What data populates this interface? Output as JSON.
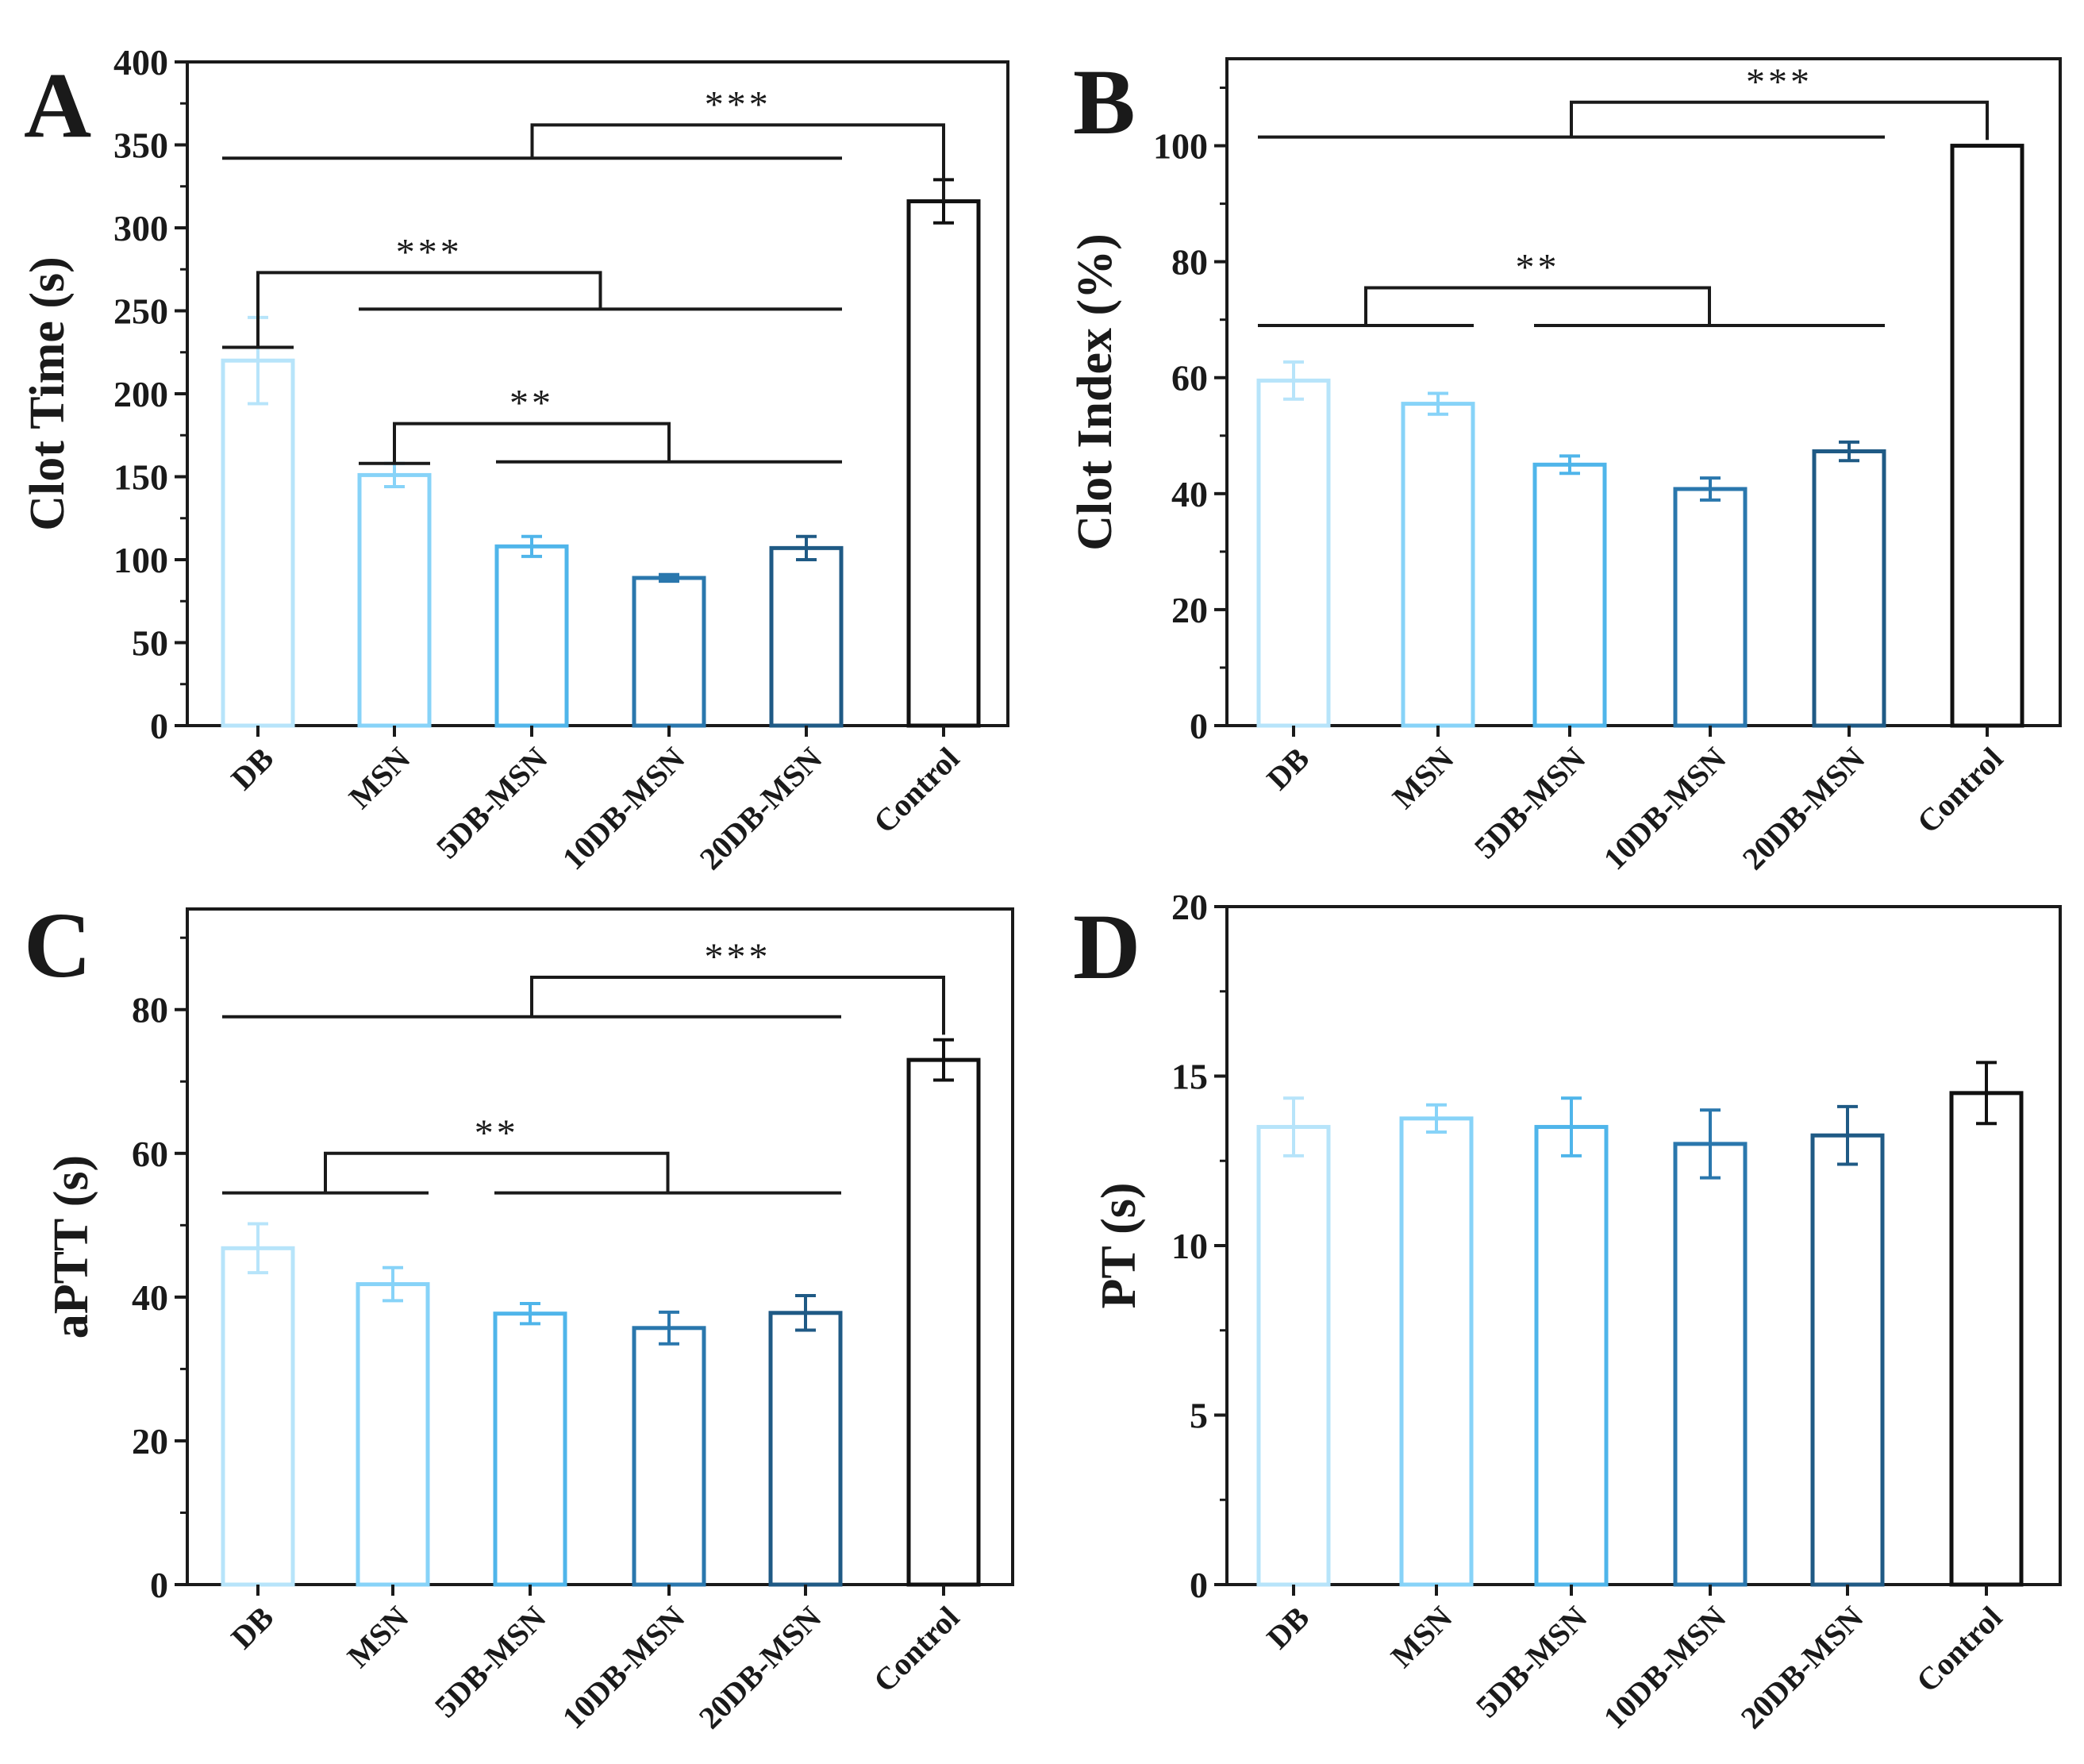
{
  "chart_data": [
    {
      "type": "bar",
      "panel_label": "A",
      "categories": [
        "DB",
        "MSN",
        "5DB-MSN",
        "10DB-MSN",
        "20DB-MSN",
        "Control"
      ],
      "values": [
        220,
        151,
        108,
        89,
        107,
        316
      ],
      "errors": [
        26,
        7,
        6,
        2,
        7,
        13
      ],
      "colors": [
        "#b7e4fa",
        "#87d3f8",
        "#4fb5ea",
        "#2a77ad",
        "#1f5a85",
        "#111111"
      ],
      "ylabel": "Clot Time (s)",
      "ylim": [
        0,
        400
      ],
      "yticks": [
        0,
        50,
        100,
        150,
        200,
        250,
        300,
        350,
        400
      ],
      "brackets": [
        {
          "label": "***",
          "left": [
            0,
            4
          ],
          "right": [
            5,
            5
          ],
          "left_y": 342,
          "right_y": 316,
          "top": 362
        },
        {
          "label": "***",
          "left": [
            0,
            0
          ],
          "right": [
            1,
            4
          ],
          "left_y": 228,
          "right_y": 251,
          "top": 273
        },
        {
          "label": "**",
          "left": [
            1,
            1
          ],
          "right": [
            2,
            4
          ],
          "left_y": 158,
          "right_y": 159,
          "top": 182
        }
      ]
    },
    {
      "type": "bar",
      "panel_label": "B",
      "categories": [
        "DB",
        "MSN",
        "5DB-MSN",
        "10DB-MSN",
        "20DB-MSN",
        "Control"
      ],
      "values": [
        59.5,
        55.5,
        45,
        40.8,
        47.3,
        100
      ],
      "errors": [
        3.2,
        1.8,
        1.5,
        1.9,
        1.6,
        0
      ],
      "colors": [
        "#b7e4fa",
        "#87d3f8",
        "#4fb5ea",
        "#2a77ad",
        "#1f5a85",
        "#111111"
      ],
      "ylabel": "Clot Index (%)",
      "ylim": [
        0,
        115
      ],
      "yticks": [
        0,
        20,
        40,
        60,
        80,
        100
      ],
      "brackets": [
        {
          "label": "***",
          "left": [
            0,
            4
          ],
          "right": [
            5,
            5
          ],
          "left_y": 101.5,
          "right_y": 101,
          "top": 107.5
        },
        {
          "label": "**",
          "left": [
            0,
            1
          ],
          "right": [
            2,
            4
          ],
          "left_y": 69,
          "right_y": 69,
          "top": 75.5
        }
      ]
    },
    {
      "type": "bar",
      "panel_label": "C",
      "categories": [
        "DB",
        "MSN",
        "5DB-MSN",
        "10DB-MSN",
        "20DB-MSN",
        "Control"
      ],
      "values": [
        46.8,
        41.8,
        37.7,
        35.7,
        37.8,
        73
      ],
      "errors": [
        3.4,
        2.3,
        1.4,
        2.2,
        2.4,
        2.8
      ],
      "colors": [
        "#b7e4fa",
        "#87d3f8",
        "#4fb5ea",
        "#2a77ad",
        "#1f5a85",
        "#111111"
      ],
      "ylabel": "aPTT (s)",
      "ylim": [
        0,
        94
      ],
      "yticks": [
        0,
        20,
        40,
        60,
        80
      ],
      "brackets": [
        {
          "label": "***",
          "left": [
            0,
            4
          ],
          "right": [
            5,
            5
          ],
          "left_y": 79,
          "right_y": 76.5,
          "top": 84.5
        },
        {
          "label": "**",
          "left": [
            0,
            1
          ],
          "right": [
            2,
            4
          ],
          "left_y": 54.5,
          "right_y": 54.5,
          "top": 60
        }
      ]
    },
    {
      "type": "bar",
      "panel_label": "D",
      "categories": [
        "DB",
        "MSN",
        "5DB-MSN",
        "10DB-MSN",
        "20DB-MSN",
        "Control"
      ],
      "values": [
        13.5,
        13.75,
        13.5,
        13,
        13.25,
        14.5
      ],
      "errors": [
        0.85,
        0.4,
        0.85,
        1.0,
        0.85,
        0.9
      ],
      "colors": [
        "#b7e4fa",
        "#87d3f8",
        "#4fb5ea",
        "#2a77ad",
        "#1f5a85",
        "#111111"
      ],
      "ylabel": "PT (s)",
      "ylim": [
        0,
        20
      ],
      "yticks": [
        0,
        5,
        10,
        15,
        20
      ],
      "brackets": []
    }
  ]
}
